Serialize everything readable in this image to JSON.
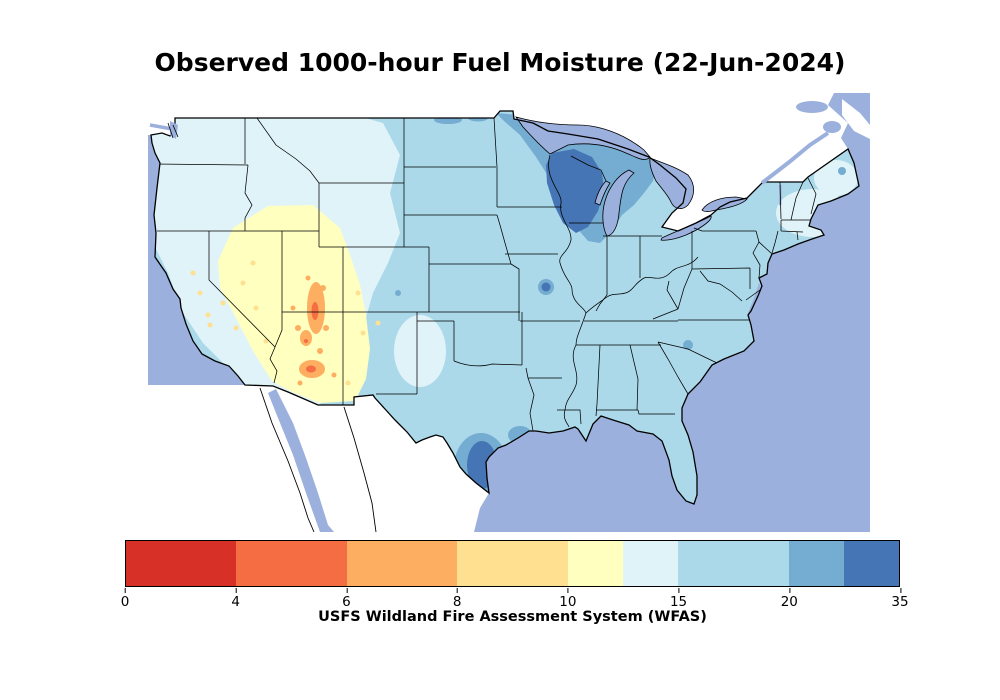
{
  "figure": {
    "title": "Observed 1000-hour Fuel Moisture (22-Jun-2024)",
    "caption": "USFS Wildland Fire Assessment System (WFAS)"
  },
  "palette": {
    "c0": "#d73027",
    "c1": "#f46d43",
    "c2": "#fdae61",
    "c3": "#fee090",
    "c4": "#ffffbf",
    "c5": "#e0f3f8",
    "c6": "#abd9e9",
    "c7": "#74add1",
    "c8": "#4575b4"
  },
  "map_colors": {
    "ocean": "#9bb0dc",
    "neighbor_land": "#ffffff",
    "outline": "#000000"
  },
  "colorbar": {
    "ticks": [
      {
        "label": "0",
        "pos": 0
      },
      {
        "label": "4",
        "pos": 2
      },
      {
        "label": "6",
        "pos": 4
      },
      {
        "label": "8",
        "pos": 6
      },
      {
        "label": "10",
        "pos": 8
      },
      {
        "label": "15",
        "pos": 10
      },
      {
        "label": "20",
        "pos": 12
      },
      {
        "label": "35",
        "pos": 14
      }
    ],
    "segments": [
      {
        "color": "#d73027",
        "width": 2
      },
      {
        "color": "#f46d43",
        "width": 2
      },
      {
        "color": "#fdae61",
        "width": 2
      },
      {
        "color": "#fee090",
        "width": 2
      },
      {
        "color": "#ffffbf",
        "width": 1
      },
      {
        "color": "#e0f3f8",
        "width": 1
      },
      {
        "color": "#abd9e9",
        "width": 2
      },
      {
        "color": "#74add1",
        "width": 1
      },
      {
        "color": "#4575b4",
        "width": 1
      }
    ]
  },
  "map_readings": [
    {
      "region": "Utah / Arizona interior",
      "value_range": "4-10 (driest, orange-yellow)"
    },
    {
      "region": "Great Basin, Nevada, southern Idaho, western New Mexico",
      "value_range": "8-10 (pale yellow)"
    },
    {
      "region": "Pacific Northwest and far West",
      "value_range": "10-15 (pale blue)"
    },
    {
      "region": "Central and Eastern U.S.",
      "value_range": "15-20 (light blue)"
    },
    {
      "region": "Wisconsin / western Great Lakes",
      "value_range": "20-35 (dark blue, moistest)"
    },
    {
      "region": "South Texas coast",
      "value_range": "20-35 (dark blue)"
    }
  ]
}
